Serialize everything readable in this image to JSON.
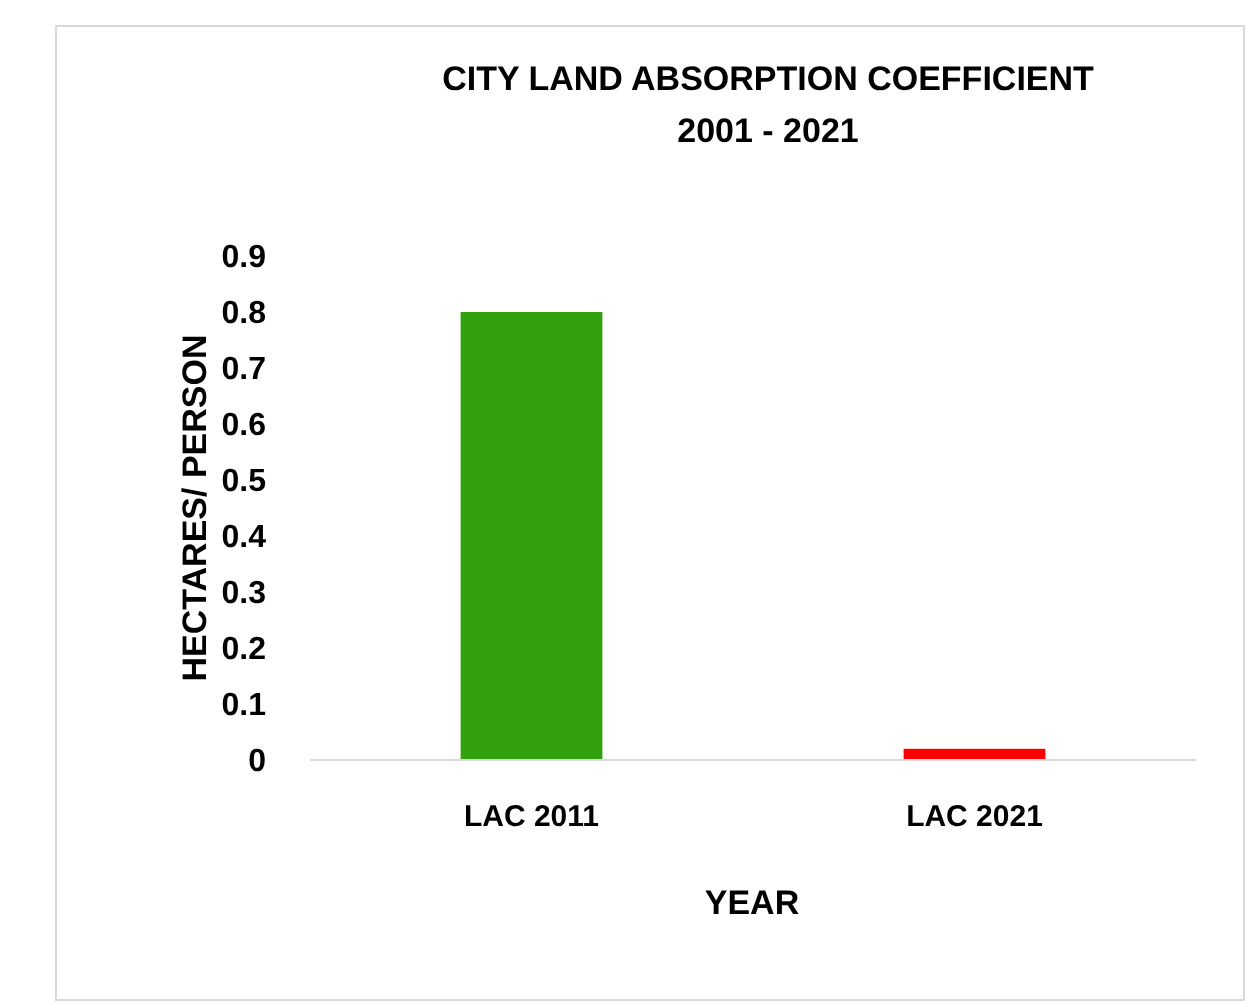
{
  "chart_data": {
    "type": "bar",
    "title": "CITY LAND ABSORPTION COEFFICIENT\n2001 - 2021",
    "xlabel": "YEAR",
    "ylabel": "HECTARES/ PERSON",
    "categories": [
      "LAC 2011",
      "LAC 2021"
    ],
    "values": [
      0.8,
      0.02
    ],
    "colors": [
      "#33a10e",
      "#ff0000"
    ],
    "ylim": [
      0,
      0.9
    ],
    "yticks": [
      0,
      0.1,
      0.2,
      0.3,
      0.4,
      0.5,
      0.6,
      0.7,
      0.8,
      0.9
    ],
    "grid": false
  }
}
